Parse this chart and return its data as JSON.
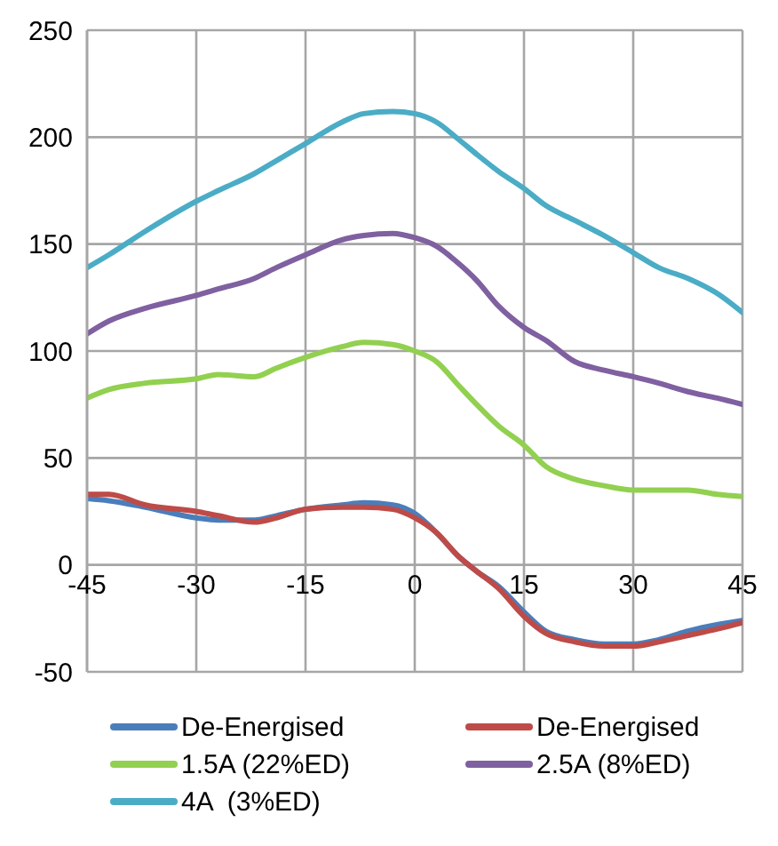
{
  "chart_data": {
    "type": "line",
    "x": [
      -45,
      -42,
      -37,
      -30,
      -27,
      -22,
      -19,
      -15,
      -10,
      -7,
      -3,
      0,
      3,
      6,
      8.5,
      11.5,
      15,
      18,
      22,
      26,
      30,
      33.5,
      37.5,
      41.5,
      45
    ],
    "series": [
      {
        "name": "De-Energised",
        "color": "#4a7ebb",
        "values": [
          31,
          30,
          27,
          22,
          21,
          21,
          23,
          26,
          28,
          29,
          28,
          24,
          15,
          4,
          -3,
          -10,
          -22,
          -31,
          -35,
          -37,
          -37,
          -35,
          -31,
          -28,
          -26
        ]
      },
      {
        "name": "De-Energised",
        "color": "#be4b48",
        "values": [
          33,
          33,
          28,
          25,
          23,
          20,
          22,
          26,
          27,
          27,
          26,
          22,
          15,
          4,
          -3,
          -11,
          -24,
          -32,
          -36,
          -38,
          -38,
          -36,
          -33,
          -30,
          -27
        ]
      },
      {
        "name": "1.5A (22%ED)",
        "color": "#92d050",
        "values": [
          78,
          82,
          85,
          87,
          89,
          88,
          92,
          97,
          102,
          104,
          103,
          100,
          95,
          84,
          75,
          65,
          56,
          46,
          40,
          37,
          35,
          35,
          35,
          33,
          32
        ]
      },
      {
        "name": "2.5A (8%ED)",
        "color": "#7f60a0",
        "values": [
          108,
          114,
          120,
          126,
          129,
          134,
          139,
          145,
          152,
          154,
          155,
          153,
          149,
          141,
          133,
          121,
          111,
          105,
          95,
          91,
          88,
          85,
          81,
          78,
          75
        ]
      },
      {
        "name": "4A  (3%ED)",
        "color": "#4bacc6",
        "values": [
          139,
          145,
          156,
          170,
          175,
          183,
          189,
          197,
          207,
          211,
          212,
          211,
          207,
          199,
          192,
          184,
          176,
          168,
          161,
          154,
          146,
          139,
          134,
          127,
          118
        ]
      }
    ],
    "xlim": [
      -45,
      45
    ],
    "xticks": [
      -45,
      -30,
      -15,
      0,
      15,
      30,
      45
    ],
    "ylim": [
      -50,
      250
    ],
    "yticks": [
      -50,
      0,
      50,
      100,
      150,
      200,
      250
    ],
    "grid": true,
    "legend": "bottom"
  }
}
